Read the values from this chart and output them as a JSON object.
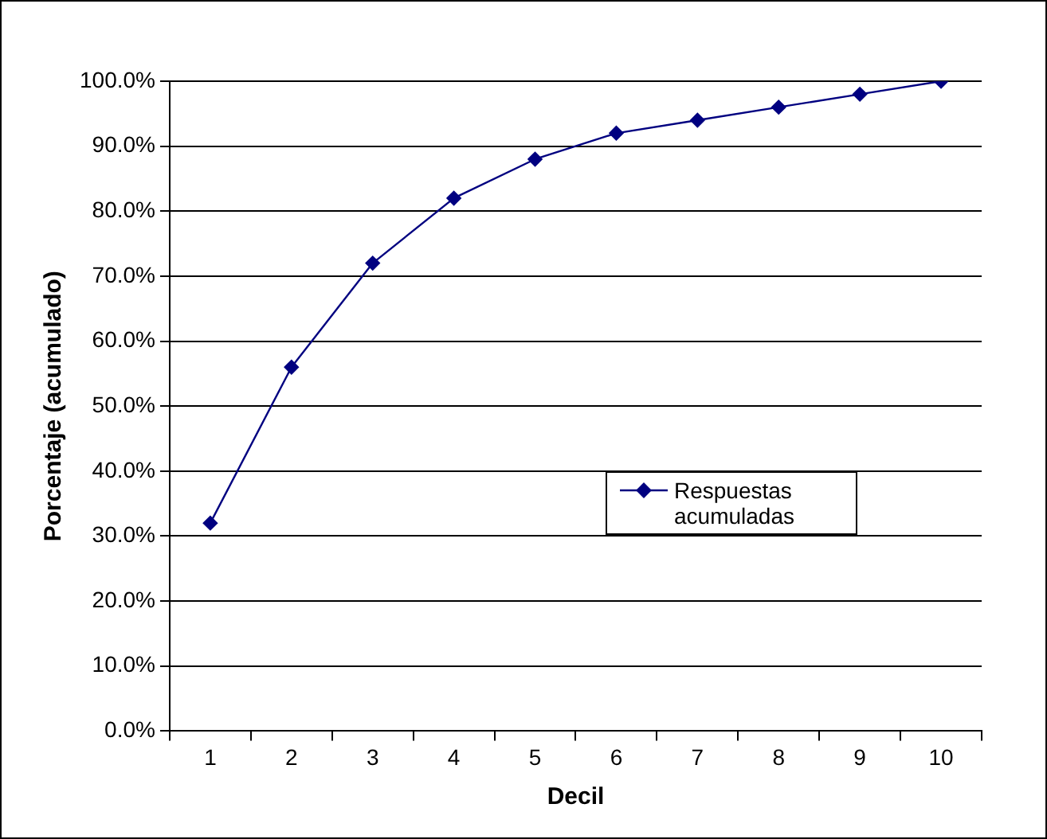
{
  "chart_data": {
    "type": "line",
    "xlabel": "Decil",
    "ylabel": "Porcentaje (acumulado)",
    "categories": [
      "1",
      "2",
      "3",
      "4",
      "5",
      "6",
      "7",
      "8",
      "9",
      "10"
    ],
    "series": [
      {
        "name": "Respuestas acumuladas",
        "color": "#000080",
        "values": [
          32,
          56,
          72,
          82,
          88,
          92,
          94,
          96,
          98,
          100
        ]
      }
    ],
    "ylim": [
      0,
      100
    ],
    "yticks": [
      {
        "value": 0,
        "label": "0.0%"
      },
      {
        "value": 10,
        "label": "10.0%"
      },
      {
        "value": 20,
        "label": "20.0%"
      },
      {
        "value": 30,
        "label": "30.0%"
      },
      {
        "value": 40,
        "label": "40.0%"
      },
      {
        "value": 50,
        "label": "50.0%"
      },
      {
        "value": 60,
        "label": "60.0%"
      },
      {
        "value": 70,
        "label": "70.0%"
      },
      {
        "value": 80,
        "label": "80.0%"
      },
      {
        "value": 90,
        "label": "90.0%"
      },
      {
        "value": 100,
        "label": "100.0%"
      }
    ],
    "grid": "y",
    "legend": "right",
    "marker": "diamond",
    "line_style": "solid"
  }
}
